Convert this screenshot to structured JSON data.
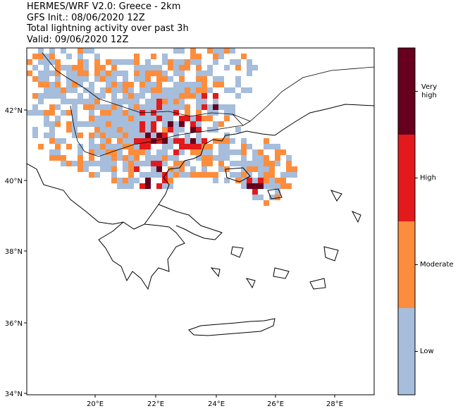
{
  "title": {
    "line1": "HERMES/WRF V2.0: Greece - 2km",
    "line2": "GFS Init.: 08/06/2020 12Z",
    "line3": "Total lightning activity over past 3h",
    "line4": "Valid: 09/06/2020 12Z"
  },
  "axes": {
    "lon_ticks": [
      "20°E",
      "22°E",
      "24°E",
      "26°E",
      "28°E"
    ],
    "lat_ticks": [
      "42°N",
      "40°N",
      "38°N",
      "36°N",
      "34°N"
    ]
  },
  "colorbar": {
    "levels": [
      {
        "label": "Low",
        "color": "#a6bddb"
      },
      {
        "label": "Moderate",
        "color": "#fd8d3c"
      },
      {
        "label": "High",
        "color": "#e31a1c"
      },
      {
        "label": "Very high",
        "color": "#67001f"
      }
    ]
  }
}
